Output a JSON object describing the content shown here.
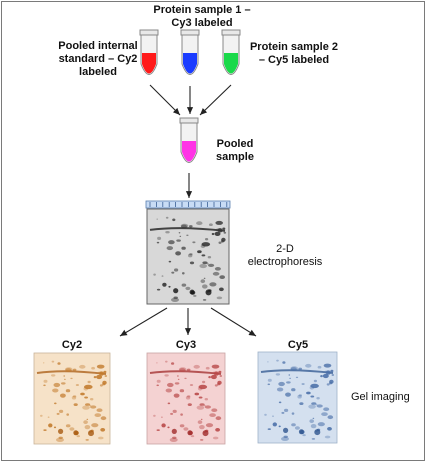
{
  "labels": {
    "sample1": [
      "Protein sample 1 –",
      "Cy3 labeled"
    ],
    "pooled_standard": [
      "Pooled internal",
      "standard – Cy2",
      "labeled"
    ],
    "sample2": [
      "Protein sample 2",
      "– Cy5 labeled"
    ],
    "pooled_sample": [
      "Pooled",
      "sample"
    ],
    "electrophoresis": [
      "2-D",
      "electrophoresis"
    ],
    "gel_imaging": "Gel imaging",
    "cy2": "Cy2",
    "cy3": "Cy3",
    "cy5": "Cy5"
  },
  "colors": {
    "tube_cy2": "#ff1a1a",
    "tube_cy3": "#1a3cff",
    "tube_cy5": "#1ad94a",
    "tube_pooled": "#ff33e6",
    "gel_cy2_bg": "#f6e2c8",
    "gel_cy3_bg": "#f4d2d2",
    "gel_cy5_bg": "#d4e0ef",
    "gel_gray_bg": "#d8d8d8"
  }
}
